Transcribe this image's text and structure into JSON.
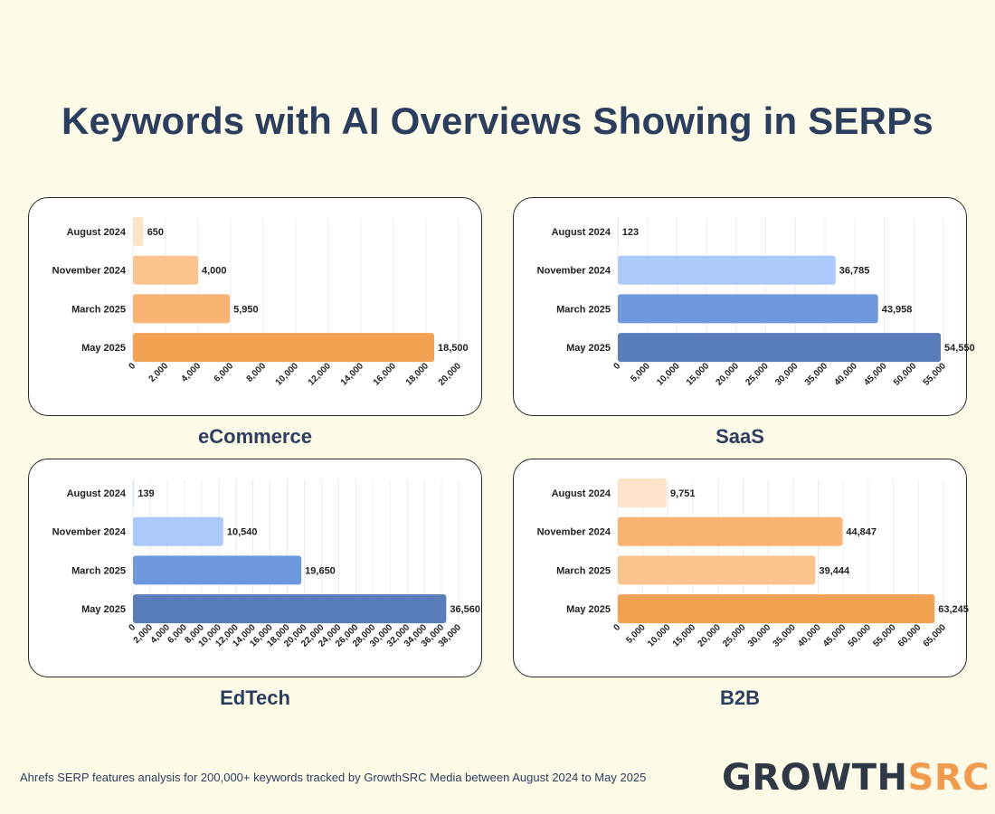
{
  "title": "Keywords with AI Overviews Showing in SERPs",
  "footnote": "Ahrefs SERP features analysis for 200,000+ keywords tracked by GrowthSRC Media between August 2024 to May 2025",
  "logo": {
    "part1": "GROWTH",
    "part2": "SRC"
  },
  "chart_data": [
    {
      "type": "bar",
      "orientation": "horizontal",
      "title": "eCommerce",
      "categories": [
        "August 2024",
        "November 2024",
        "March 2025",
        "May 2025"
      ],
      "values": [
        650,
        4000,
        5950,
        18500
      ],
      "value_labels": [
        "650",
        "4,000",
        "5,950",
        "18,500"
      ],
      "bar_colors": [
        "#fde3c9",
        "#fbc48f",
        "#f9b474",
        "#f2a152"
      ],
      "xlim": [
        0,
        20000
      ],
      "ticks": [
        0,
        2000,
        4000,
        6000,
        8000,
        10000,
        12000,
        14000,
        16000,
        18000,
        20000
      ],
      "tick_labels": [
        "0",
        "2,000",
        "4,000",
        "6,000",
        "8,000",
        "10,000",
        "12,000",
        "14,000",
        "16,000",
        "18,000",
        "20,000"
      ],
      "grid": true
    },
    {
      "type": "bar",
      "orientation": "horizontal",
      "title": "SaaS",
      "categories": [
        "August 2024",
        "November 2024",
        "March 2025",
        "May 2025"
      ],
      "values": [
        123,
        36785,
        43958,
        54550
      ],
      "value_labels": [
        "123",
        "36,785",
        "43,958",
        "54,550"
      ],
      "bar_colors": [
        "#d6e3fb",
        "#adc9fb",
        "#6e99de",
        "#587db9"
      ],
      "xlim": [
        0,
        55000
      ],
      "ticks": [
        0,
        5000,
        10000,
        15000,
        20000,
        25000,
        30000,
        35000,
        40000,
        45000,
        50000,
        55000
      ],
      "tick_labels": [
        "0",
        "5,000",
        "10,000",
        "15,000",
        "20,000",
        "25,000",
        "30,000",
        "35,000",
        "40,000",
        "45,000",
        "50,000",
        "55,000"
      ],
      "grid": true
    },
    {
      "type": "bar",
      "orientation": "horizontal",
      "title": "EdTech",
      "categories": [
        "August 2024",
        "November 2024",
        "March 2025",
        "May 2025"
      ],
      "values": [
        139,
        10540,
        19650,
        36560
      ],
      "value_labels": [
        "139",
        "10,540",
        "19,650",
        "36,560"
      ],
      "bar_colors": [
        "#d6e3fb",
        "#adc9fb",
        "#6e99de",
        "#587db9"
      ],
      "xlim": [
        0,
        38000
      ],
      "ticks": [
        0,
        2000,
        4000,
        6000,
        8000,
        10000,
        12000,
        14000,
        16000,
        18000,
        20000,
        22000,
        24000,
        26000,
        28000,
        30000,
        32000,
        34000,
        36000,
        38000
      ],
      "tick_labels": [
        "0",
        "2,000",
        "4,000",
        "6,000",
        "8,000",
        "10,000",
        "12,000",
        "14,000",
        "16,000",
        "18,000",
        "20,000",
        "22,000",
        "24,000",
        "26,000",
        "28,000",
        "30,000",
        "32,000",
        "34,000",
        "36,000",
        "38,000"
      ],
      "grid": true
    },
    {
      "type": "bar",
      "orientation": "horizontal",
      "title": "B2B",
      "categories": [
        "August 2024",
        "November 2024",
        "March 2025",
        "May 2025"
      ],
      "values": [
        9751,
        44847,
        39444,
        63245
      ],
      "value_labels": [
        "9,751",
        "44,847",
        "39,444",
        "63,245"
      ],
      "bar_colors": [
        "#fde3c9",
        "#f9b474",
        "#fbc48f",
        "#f2a152"
      ],
      "xlim": [
        0,
        65000
      ],
      "ticks": [
        0,
        5000,
        10000,
        15000,
        20000,
        25000,
        30000,
        35000,
        40000,
        45000,
        50000,
        55000,
        60000,
        65000
      ],
      "tick_labels": [
        "0",
        "5,000",
        "10,000",
        "15,000",
        "20,000",
        "25,000",
        "30,000",
        "35,000",
        "40,000",
        "45,000",
        "50,000",
        "55,000",
        "60,000",
        "65,000"
      ],
      "grid": true
    }
  ]
}
